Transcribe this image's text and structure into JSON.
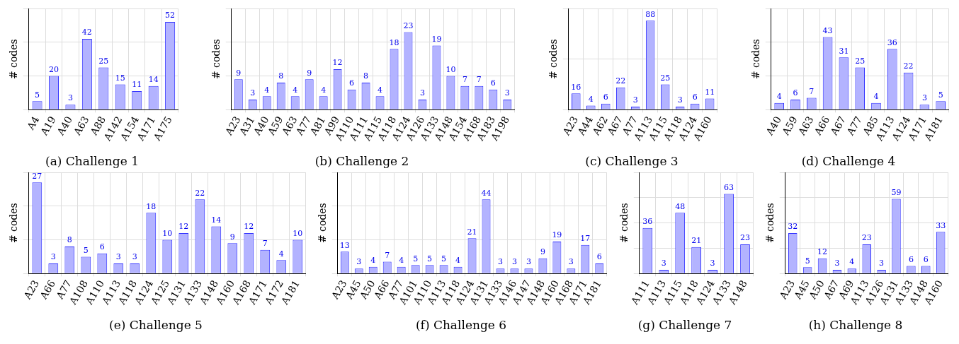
{
  "chart_data": [
    {
      "type": "bar",
      "title": "(a) Challenge 1",
      "ylabel": "# codes",
      "categories": [
        "A4",
        "A19",
        "A40",
        "A63",
        "A88",
        "A142",
        "A154",
        "A171",
        "A175"
      ],
      "values": [
        5,
        20,
        3,
        42,
        25,
        15,
        11,
        14,
        52
      ],
      "color": "#b3b3ff",
      "data_labels": true,
      "grid": true,
      "tick_labels": "x",
      "legend": false
    },
    {
      "type": "bar",
      "title": "(b) Challenge 2",
      "ylabel": "# codes",
      "categories": [
        "A23",
        "A31",
        "A40",
        "A59",
        "A63",
        "A77",
        "A81",
        "A99",
        "A110",
        "A111",
        "A115",
        "A118",
        "A124",
        "A126",
        "A133",
        "A148",
        "A154",
        "A168",
        "A183",
        "A198"
      ],
      "values": [
        9,
        3,
        4,
        8,
        4,
        9,
        4,
        12,
        6,
        8,
        4,
        18,
        23,
        3,
        19,
        10,
        7,
        7,
        6,
        3
      ],
      "color": "#b3b3ff",
      "data_labels": true,
      "grid": true,
      "tick_labels": "x",
      "legend": false
    },
    {
      "type": "bar",
      "title": "(c) Challenge 3",
      "ylabel": "# codes",
      "categories": [
        "A23",
        "A44",
        "A62",
        "A67",
        "A77",
        "A113",
        "A115",
        "A118",
        "A124",
        "A160"
      ],
      "values": [
        16,
        4,
        6,
        22,
        3,
        88,
        25,
        3,
        6,
        11
      ],
      "color": "#b3b3ff",
      "data_labels": true,
      "grid": true,
      "tick_labels": "x",
      "legend": false
    },
    {
      "type": "bar",
      "title": "(d) Challenge 4",
      "ylabel": "# codes",
      "categories": [
        "A40",
        "A59",
        "A63",
        "A66",
        "A67",
        "A77",
        "A85",
        "A113",
        "A124",
        "A171",
        "A181"
      ],
      "values": [
        4,
        6,
        7,
        43,
        31,
        25,
        4,
        36,
        22,
        3,
        5
      ],
      "color": "#b3b3ff",
      "data_labels": true,
      "grid": true,
      "tick_labels": "x",
      "legend": false
    },
    {
      "type": "bar",
      "title": "(e) Challenge 5",
      "ylabel": "# codes",
      "categories": [
        "A23",
        "A66",
        "A77",
        "A108",
        "A110",
        "A113",
        "A118",
        "A124",
        "A125",
        "A131",
        "A133",
        "A148",
        "A160",
        "A168",
        "A171",
        "A172",
        "A181"
      ],
      "values": [
        27,
        3,
        8,
        5,
        6,
        3,
        3,
        18,
        10,
        12,
        22,
        14,
        9,
        12,
        7,
        4,
        10
      ],
      "color": "#b3b3ff",
      "data_labels": true,
      "grid": true,
      "tick_labels": "x",
      "legend": false
    },
    {
      "type": "bar",
      "title": "(f) Challenge 6",
      "ylabel": "# codes",
      "categories": [
        "A23",
        "A45",
        "A50",
        "A66",
        "A77",
        "A101",
        "A110",
        "A113",
        "A118",
        "A124",
        "A131",
        "A133",
        "A146",
        "A147",
        "A148",
        "A160",
        "A168",
        "A171",
        "A181"
      ],
      "values": [
        13,
        3,
        4,
        7,
        4,
        5,
        5,
        5,
        4,
        21,
        44,
        3,
        3,
        3,
        9,
        19,
        3,
        17,
        6
      ],
      "color": "#b3b3ff",
      "data_labels": true,
      "grid": true,
      "tick_labels": "x",
      "legend": false
    },
    {
      "type": "bar",
      "title": "(g) Challenge 7",
      "ylabel": "# codes",
      "categories": [
        "A111",
        "A113",
        "A115",
        "A118",
        "A124",
        "A133",
        "A148"
      ],
      "values": [
        36,
        3,
        48,
        21,
        3,
        63,
        23
      ],
      "color": "#b3b3ff",
      "data_labels": true,
      "grid": true,
      "tick_labels": "x",
      "legend": false
    },
    {
      "type": "bar",
      "title": "(h) Challenge 8",
      "ylabel": "# codes",
      "categories": [
        "A23",
        "A45",
        "A50",
        "A67",
        "A69",
        "A113",
        "A126",
        "A131",
        "A133",
        "A148",
        "A160"
      ],
      "values": [
        32,
        5,
        12,
        3,
        4,
        23,
        3,
        59,
        6,
        6,
        33
      ],
      "color": "#b3b3ff",
      "data_labels": true,
      "grid": true,
      "tick_labels": "x",
      "legend": false
    }
  ]
}
